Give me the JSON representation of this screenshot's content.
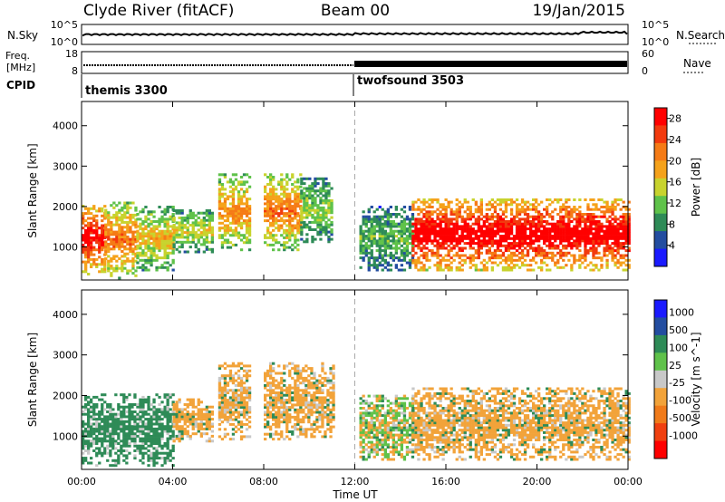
{
  "header": {
    "station": "Clyde River (fitACF)",
    "beam": "Beam 00",
    "date": "19/Jan/2015"
  },
  "noise_panel": {
    "left_label": "N.Sky",
    "right_label": "N.Search",
    "left_ticks": [
      "10^5",
      "10^0"
    ],
    "right_ticks": [
      "10^5",
      "10^0"
    ]
  },
  "freq_panel": {
    "left_label_1": "Freq.",
    "left_label_2": "[MHz]",
    "right_label": "Nave",
    "left_ticks": [
      "18",
      "8"
    ],
    "right_ticks": [
      "60",
      "0"
    ]
  },
  "cpid": {
    "label": "CPID",
    "programs": [
      {
        "name": "themis 3300",
        "start_hour": 0
      },
      {
        "name": "twofsound 3503",
        "start_hour": 12
      }
    ]
  },
  "colors": {
    "power_scale": [
      "#1a1aff",
      "#234da0",
      "#2e8b57",
      "#5fc24a",
      "#c8d32e",
      "#f5a21b",
      "#f57b16",
      "#f23a0e",
      "#ff0000"
    ],
    "velocity_scale": [
      "#1a1aff",
      "#234da0",
      "#2e8b57",
      "#5fc24a",
      "#c8c8c8",
      "#f2a33a",
      "#f07b1a",
      "#f04010",
      "#ff0000"
    ],
    "dashed_line": "#aaaaaa"
  },
  "chart_data": [
    {
      "type": "heatmap",
      "title": "",
      "ylabel": "Slant Range [km]",
      "xlabel": "",
      "x_ticks": [
        "00:00",
        "04:00",
        "08:00",
        "12:00",
        "16:00",
        "20:00",
        "00:00"
      ],
      "xlim_hours": [
        0,
        24
      ],
      "y_ticks": [
        1000,
        2000,
        3000,
        4000
      ],
      "ylim": [
        180,
        4600
      ],
      "colorbar": {
        "label": "Power [dB]",
        "ticks": [
          4,
          8,
          12,
          16,
          20,
          24,
          28
        ],
        "range": [
          0,
          30
        ]
      },
      "regions": [
        {
          "t": [
            0.0,
            1.0
          ],
          "r": [
            300,
            2100
          ],
          "v": 26
        },
        {
          "t": [
            1.0,
            2.4
          ],
          "r": [
            200,
            2100
          ],
          "v": 20
        },
        {
          "t": [
            2.4,
            4.0
          ],
          "r": [
            400,
            2000
          ],
          "v": 16
        },
        {
          "t": [
            4.0,
            5.8
          ],
          "r": [
            850,
            1900
          ],
          "v": 14
        },
        {
          "t": [
            6.0,
            7.4
          ],
          "r": [
            900,
            2800
          ],
          "v": 18
        },
        {
          "t": [
            8.0,
            9.6
          ],
          "r": [
            900,
            2800
          ],
          "v": 20
        },
        {
          "t": [
            9.6,
            11.0
          ],
          "r": [
            1100,
            2700
          ],
          "v": 12
        },
        {
          "t": [
            12.2,
            14.5
          ],
          "r": [
            400,
            2000
          ],
          "v": 10
        },
        {
          "t": [
            14.5,
            24.0
          ],
          "r": [
            400,
            2200
          ],
          "v": 28
        }
      ]
    },
    {
      "type": "heatmap",
      "title": "",
      "ylabel": "Slant Range [km]",
      "xlabel": "Time UT",
      "x_ticks": [
        "00:00",
        "04:00",
        "08:00",
        "12:00",
        "16:00",
        "20:00",
        "00:00"
      ],
      "xlim_hours": [
        0,
        24
      ],
      "y_ticks": [
        1000,
        2000,
        3000,
        4000
      ],
      "ylim": [
        180,
        4600
      ],
      "colorbar": {
        "label": "Velocity [m s^-1]",
        "ticks": [
          "1000",
          "500",
          "100",
          "25",
          "-25",
          "-100",
          "-500",
          "-1000"
        ]
      },
      "regions": [
        {
          "t": [
            0.0,
            4.0
          ],
          "r": [
            250,
            2000
          ],
          "v": 100
        },
        {
          "t": [
            4.0,
            5.8
          ],
          "r": [
            850,
            1900
          ],
          "v": -100
        },
        {
          "t": [
            6.0,
            7.4
          ],
          "r": [
            900,
            2800
          ],
          "v": -100
        },
        {
          "t": [
            8.0,
            11.0
          ],
          "r": [
            900,
            2800
          ],
          "v": -100
        },
        {
          "t": [
            12.2,
            14.5
          ],
          "r": [
            400,
            2000
          ],
          "v": 0
        },
        {
          "t": [
            14.5,
            24.0
          ],
          "r": [
            400,
            2200
          ],
          "v": -100
        }
      ]
    }
  ]
}
